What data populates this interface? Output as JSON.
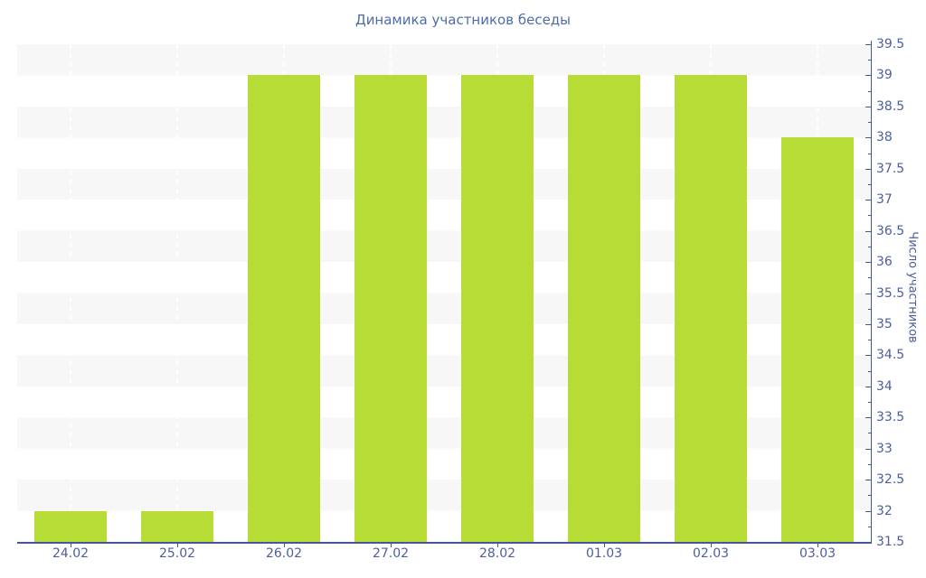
{
  "chart_data": {
    "type": "bar",
    "title": "Динамика участников беседы",
    "categories": [
      "24.02",
      "25.02",
      "26.02",
      "27.02",
      "28.02",
      "01.03",
      "02.03",
      "03.03"
    ],
    "values": [
      32,
      32,
      39,
      39,
      39,
      39,
      39,
      38
    ],
    "xlabel": "",
    "ylabel": "Число участников",
    "ylim": [
      31.5,
      39.5
    ],
    "ytick_step": 0.5,
    "yticks": [
      "39.5",
      "39",
      "38.5",
      "38",
      "37.5",
      "37",
      "36.5",
      "36",
      "35.5",
      "35",
      "34.5",
      "34",
      "33.5",
      "33",
      "32.5",
      "32",
      "31.5"
    ],
    "legend_position": "none",
    "grid": "horizontal-bands",
    "colors": {
      "bar": "#b7dc35",
      "band_gray": "#f7f7f7",
      "band_white": "#ffffff",
      "axis_line": "#41589a",
      "tick_label": "#4c5f9c",
      "title": "#4d6cab"
    }
  }
}
